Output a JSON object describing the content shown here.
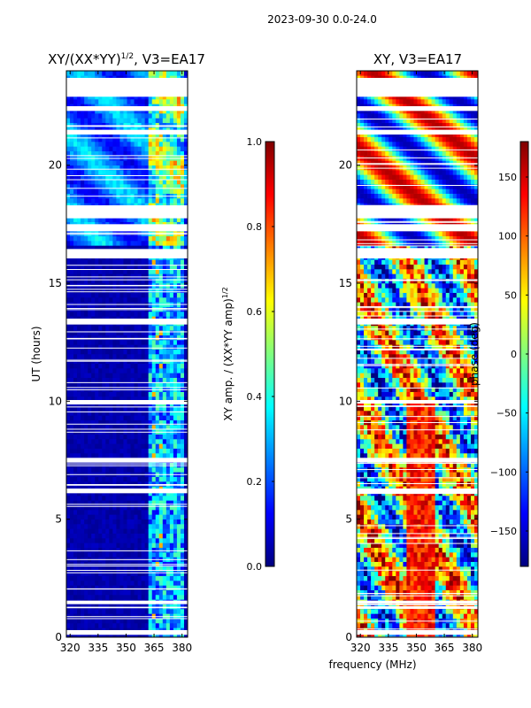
{
  "suptitle": "2023-09-30 0.0-24.0",
  "xlabel_shared": "frequency (MHz)",
  "colormap": [
    "#00007f",
    "#0000ff",
    "#007fff",
    "#00ffff",
    "#7fff7f",
    "#ffff00",
    "#ff7f00",
    "#ff0000",
    "#7f0000"
  ],
  "colors": {
    "gap": "#ffffff",
    "frame": "#000000"
  },
  "chart_data": [
    {
      "type": "heatmap",
      "title_main": "XY/(XX*YY)",
      "title_exp": "1/2",
      "title_suffix": ", V3=EA17",
      "xlabel": "",
      "ylabel": "UT (hours)",
      "xlim": [
        318,
        383
      ],
      "ylim": [
        0,
        24
      ],
      "xticks": [
        "320",
        "335",
        "350",
        "365",
        "380"
      ],
      "xtick_values": [
        320,
        335,
        350,
        365,
        380
      ],
      "yticks": [
        "0",
        "5",
        "10",
        "15",
        "20"
      ],
      "ytick_values": [
        0,
        5,
        10,
        15,
        20
      ],
      "colorbar": {
        "label_main": "XY amp. / (XX*YY amp)",
        "label_exp": "1/2",
        "range": [
          0,
          1
        ],
        "ticks": [
          "0.0",
          "0.2",
          "0.4",
          "0.6",
          "0.8",
          "1.0"
        ],
        "tick_values": [
          0,
          0.2,
          0.4,
          0.6,
          0.8,
          1.0
        ]
      },
      "data_gaps_hours": [
        [
          17.2,
          17.5
        ],
        [
          17.75,
          18.3
        ],
        [
          21.3,
          21.5
        ],
        [
          22.3,
          22.5
        ],
        [
          22.9,
          23.7
        ],
        [
          16.05,
          16.45
        ],
        [
          13.25,
          13.5
        ],
        [
          9.9,
          10.05
        ],
        [
          7.4,
          7.6
        ],
        [
          6.1,
          6.3
        ],
        [
          1.4,
          1.55
        ],
        [
          0.1,
          0.3
        ]
      ]
    },
    {
      "type": "heatmap",
      "title_main": "XY, V3=EA17",
      "xlabel": "frequency (MHz)",
      "ylabel": "",
      "xlim": [
        318,
        383
      ],
      "ylim": [
        0,
        24
      ],
      "xticks": [
        "320",
        "335",
        "350",
        "365",
        "380"
      ],
      "xtick_values": [
        320,
        335,
        350,
        365,
        380
      ],
      "yticks": [
        "0",
        "5",
        "10",
        "15",
        "20"
      ],
      "ytick_values": [
        0,
        5,
        10,
        15,
        20
      ],
      "colorbar": {
        "label": "phase (deg)",
        "range": [
          -180,
          180
        ],
        "ticks": [
          "−150",
          "−100",
          "−50",
          "0",
          "50",
          "100",
          "150"
        ],
        "tick_values": [
          -150,
          -100,
          -50,
          0,
          50,
          100,
          150
        ]
      },
      "data_gaps_hours": [
        [
          17.2,
          17.5
        ],
        [
          17.75,
          18.3
        ],
        [
          21.3,
          21.5
        ],
        [
          22.3,
          22.5
        ],
        [
          22.9,
          23.7
        ],
        [
          16.05,
          16.45
        ],
        [
          13.25,
          13.5
        ],
        [
          9.9,
          10.05
        ],
        [
          7.4,
          7.6
        ],
        [
          6.1,
          6.3
        ],
        [
          1.4,
          1.55
        ],
        [
          0.1,
          0.3
        ]
      ]
    }
  ]
}
